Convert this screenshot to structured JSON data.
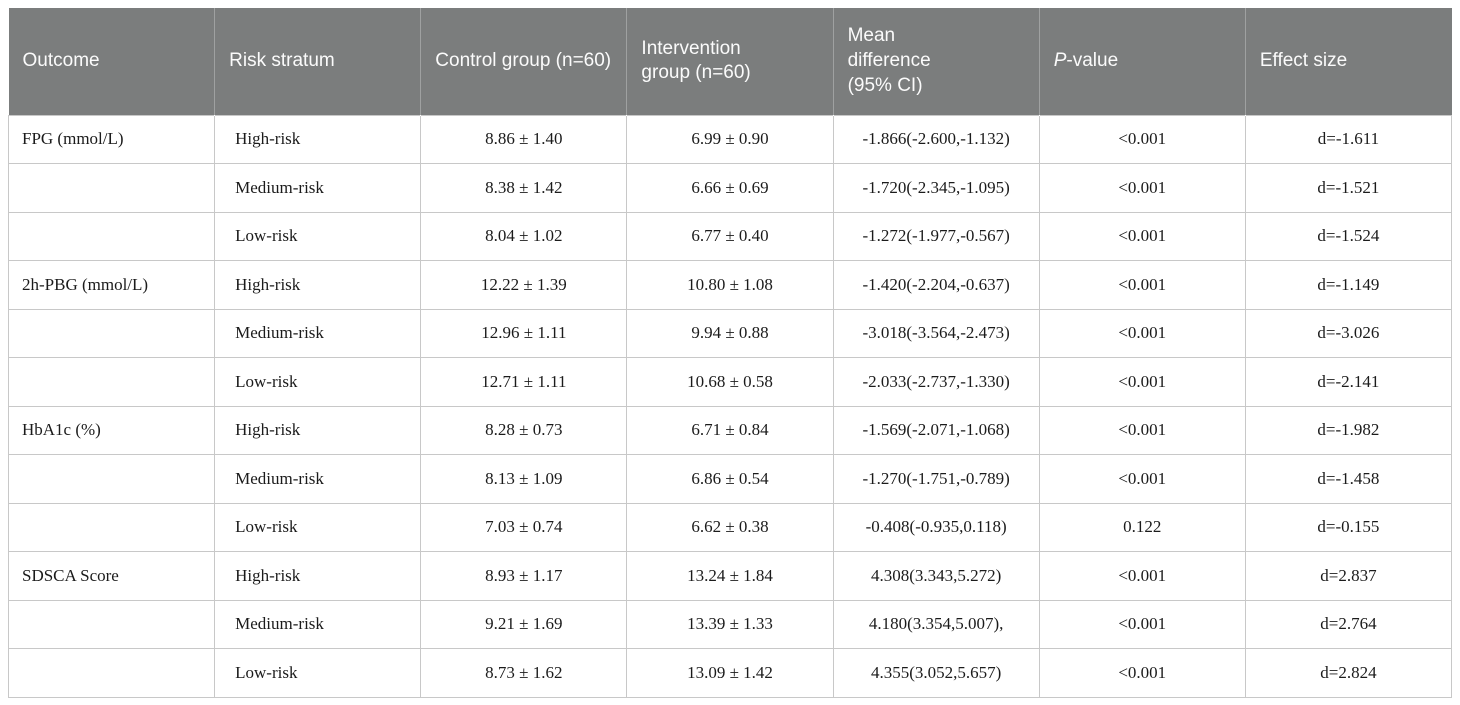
{
  "colors": {
    "header_bg": "#7b7d7d",
    "header_text": "#fbfbfb",
    "header_divider": "rgba(255,255,255,0.28)",
    "grid_line": "#c8c8c8",
    "body_text": "#1b1b1b",
    "page_bg": "#ffffff"
  },
  "table": {
    "columns": [
      {
        "id": "outcome",
        "label": "Outcome"
      },
      {
        "id": "risk-stratum",
        "label": "Risk stratum"
      },
      {
        "id": "control-group",
        "label": "Control group (n=60)"
      },
      {
        "id": "intervention-group",
        "label": "Intervention group (n=60)"
      },
      {
        "id": "mean-difference",
        "label": "Mean difference (95% CI)"
      },
      {
        "id": "p-value",
        "label_italic": "P",
        "label": "-value"
      },
      {
        "id": "effect-size",
        "label": "Effect size"
      }
    ],
    "rows": [
      {
        "cells": [
          "FPG (mmol/L)",
          "High-risk",
          "8.86 ± 1.40",
          "6.99 ± 0.90",
          "-1.866(-2.600,-1.132)",
          "<0.001",
          "d=-1.611"
        ]
      },
      {
        "cells": [
          "",
          "Medium-risk",
          "8.38 ± 1.42",
          "6.66 ± 0.69",
          "-1.720(-2.345,-1.095)",
          "<0.001",
          "d=-1.521"
        ]
      },
      {
        "cells": [
          "",
          "Low-risk",
          "8.04 ± 1.02",
          "6.77 ± 0.40",
          "-1.272(-1.977,-0.567)",
          "<0.001",
          "d=-1.524"
        ]
      },
      {
        "cells": [
          "2h-PBG (mmol/L)",
          "High-risk",
          "12.22 ± 1.39",
          "10.80 ± 1.08",
          "-1.420(-2.204,-0.637)",
          "<0.001",
          "d=-1.149"
        ]
      },
      {
        "cells": [
          "",
          "Medium-risk",
          "12.96 ± 1.11",
          "9.94 ± 0.88",
          "-3.018(-3.564,-2.473)",
          "<0.001",
          "d=-3.026"
        ]
      },
      {
        "cells": [
          "",
          "Low-risk",
          "12.71 ± 1.11",
          "10.68 ± 0.58",
          "-2.033(-2.737,-1.330)",
          "<0.001",
          "d=-2.141"
        ]
      },
      {
        "cells": [
          "HbA1c (%)",
          "High-risk",
          "8.28 ± 0.73",
          "6.71 ± 0.84",
          "-1.569(-2.071,-1.068)",
          "<0.001",
          "d=-1.982"
        ]
      },
      {
        "cells": [
          "",
          "Medium-risk",
          "8.13 ± 1.09",
          "6.86 ± 0.54",
          "-1.270(-1.751,-0.789)",
          "<0.001",
          "d=-1.458"
        ]
      },
      {
        "cells": [
          "",
          "Low-risk",
          "7.03 ± 0.74",
          "6.62 ± 0.38",
          "-0.408(-0.935,0.118)",
          "0.122",
          "d=-0.155"
        ]
      },
      {
        "cells": [
          "SDSCA Score",
          "High-risk",
          "8.93 ± 1.17",
          "13.24 ± 1.84",
          "4.308(3.343,5.272)",
          "<0.001",
          "d=2.837"
        ]
      },
      {
        "cells": [
          "",
          "Medium-risk",
          "9.21 ± 1.69",
          "13.39 ± 1.33",
          "4.180(3.354,5.007),",
          "<0.001",
          "d=2.764"
        ]
      },
      {
        "cells": [
          "",
          "Low-risk",
          "8.73 ± 1.62",
          "13.09 ± 1.42",
          "4.355(3.052,5.657)",
          "<0.001",
          "d=2.824"
        ]
      }
    ]
  }
}
